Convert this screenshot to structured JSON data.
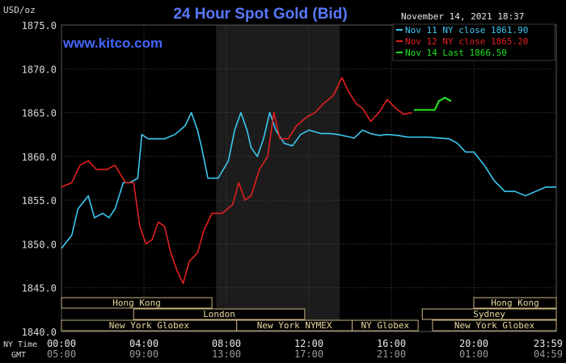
{
  "header": {
    "units": "USD/oz",
    "title": "24 Hour Spot Gold (Bid)",
    "website": "www.kitco.com",
    "timestamp": "November 14, 2021 18:37"
  },
  "legend": [
    {
      "label": "Nov 11 NY close 1861.90",
      "color": "#3cc8f0"
    },
    {
      "label": "Nov 12 NY close 1865.20",
      "color": "#e02020"
    },
    {
      "label": "Nov 14 Last 1866.50",
      "color": "#20e020"
    }
  ],
  "time_rows": {
    "ny_label": "NY Time",
    "gmt_label": "GMT",
    "ny": [
      "00:00",
      "04:00",
      "08:00",
      "12:00",
      "16:00",
      "20:00",
      "23:59"
    ],
    "gmt": [
      "05:00",
      "09:00",
      "13:00",
      "17:00",
      "21:00",
      "01:00",
      "04:59"
    ]
  },
  "sessions": {
    "row1": [
      "Hong Kong",
      "Hong Kong"
    ],
    "row2": [
      "London",
      "Sydney"
    ],
    "row3": [
      "New York Globex",
      "New York NYMEX",
      "NY Globex",
      "New York Globex"
    ]
  },
  "colors": {
    "background": "#000000",
    "grid": "#444444",
    "axis_text": "#d8d8d8",
    "title": "#5a78ff",
    "website": "#4466ff",
    "session_border": "#c8b480",
    "session_text": "#e8d8a0",
    "shade": "#1c1c1c"
  },
  "chart_data": {
    "type": "line",
    "title": "24 Hour Spot Gold (Bid)",
    "ylabel": "USD/oz",
    "ylim": [
      1840,
      1875
    ],
    "yticks": [
      "1840.0",
      "1845.0",
      "1850.0",
      "1855.0",
      "1860.0",
      "1865.0",
      "1870.0",
      "1875.0"
    ],
    "xlim": [
      0,
      24
    ],
    "shaded_hours": [
      7.5,
      13.5
    ],
    "series": [
      {
        "name": "Nov 11 NY close 1861.90",
        "color": "#3cc8f0",
        "points": [
          [
            0,
            1849.5
          ],
          [
            0.5,
            1851
          ],
          [
            0.8,
            1854
          ],
          [
            1.3,
            1855.5
          ],
          [
            1.6,
            1853
          ],
          [
            2,
            1853.5
          ],
          [
            2.3,
            1853
          ],
          [
            2.6,
            1854
          ],
          [
            3,
            1857
          ],
          [
            3.3,
            1857
          ],
          [
            3.7,
            1857.5
          ],
          [
            3.9,
            1862.5
          ],
          [
            4.2,
            1862
          ],
          [
            4.5,
            1862
          ],
          [
            5,
            1862
          ],
          [
            5.5,
            1862.5
          ],
          [
            6,
            1863.5
          ],
          [
            6.3,
            1865
          ],
          [
            6.6,
            1863
          ],
          [
            6.8,
            1861
          ],
          [
            7.1,
            1857.5
          ],
          [
            7.6,
            1857.5
          ],
          [
            8.1,
            1859.5
          ],
          [
            8.4,
            1863
          ],
          [
            8.7,
            1865
          ],
          [
            9,
            1863
          ],
          [
            9.2,
            1861
          ],
          [
            9.5,
            1860
          ],
          [
            9.8,
            1862
          ],
          [
            10.1,
            1865
          ],
          [
            10.4,
            1863
          ],
          [
            10.8,
            1861.5
          ],
          [
            11.2,
            1861.2
          ],
          [
            11.6,
            1862.5
          ],
          [
            12,
            1863
          ],
          [
            12.3,
            1862.8
          ],
          [
            12.6,
            1862.6
          ],
          [
            13,
            1862.6
          ],
          [
            13.4,
            1862.5
          ],
          [
            13.8,
            1862.3
          ],
          [
            14.2,
            1862.1
          ],
          [
            14.6,
            1863
          ],
          [
            15,
            1862.6
          ],
          [
            15.4,
            1862.4
          ],
          [
            15.8,
            1862.5
          ],
          [
            16.3,
            1862.4
          ],
          [
            16.8,
            1862.2
          ],
          [
            17.3,
            1862.2
          ],
          [
            17.8,
            1862.2
          ],
          [
            18.3,
            1862.1
          ],
          [
            18.8,
            1862
          ],
          [
            19.2,
            1861.5
          ],
          [
            19.6,
            1860.5
          ],
          [
            20,
            1860.5
          ],
          [
            20.5,
            1859
          ],
          [
            21,
            1857.2
          ],
          [
            21.5,
            1856
          ],
          [
            22,
            1856
          ],
          [
            22.5,
            1855.5
          ],
          [
            23,
            1856
          ],
          [
            23.5,
            1856.5
          ],
          [
            24,
            1856.5
          ]
        ]
      },
      {
        "name": "Nov 12 NY close 1865.20",
        "color": "#e02020",
        "points": [
          [
            0,
            1856.5
          ],
          [
            0.5,
            1857
          ],
          [
            0.9,
            1859
          ],
          [
            1.3,
            1859.5
          ],
          [
            1.7,
            1858.5
          ],
          [
            2.2,
            1858.5
          ],
          [
            2.6,
            1859
          ],
          [
            3.1,
            1857
          ],
          [
            3.5,
            1857
          ],
          [
            3.8,
            1852
          ],
          [
            4.1,
            1850
          ],
          [
            4.4,
            1850.5
          ],
          [
            4.7,
            1852.5
          ],
          [
            5,
            1852
          ],
          [
            5.3,
            1849
          ],
          [
            5.6,
            1847
          ],
          [
            5.9,
            1845.5
          ],
          [
            6.2,
            1848
          ],
          [
            6.6,
            1849
          ],
          [
            6.9,
            1851.5
          ],
          [
            7.3,
            1853.5
          ],
          [
            7.8,
            1853.5
          ],
          [
            8.3,
            1854.5
          ],
          [
            8.6,
            1857
          ],
          [
            8.9,
            1855
          ],
          [
            9.2,
            1855.5
          ],
          [
            9.6,
            1858.5
          ],
          [
            10,
            1860
          ],
          [
            10.3,
            1865
          ],
          [
            10.6,
            1862
          ],
          [
            11,
            1862
          ],
          [
            11.4,
            1863.5
          ],
          [
            11.9,
            1864.5
          ],
          [
            12.3,
            1865
          ],
          [
            12.7,
            1866
          ],
          [
            13.2,
            1867
          ],
          [
            13.6,
            1869
          ],
          [
            13.9,
            1867.5
          ],
          [
            14.3,
            1866
          ],
          [
            14.6,
            1865.5
          ],
          [
            15,
            1864
          ],
          [
            15.4,
            1865
          ],
          [
            15.8,
            1866.5
          ],
          [
            16.2,
            1865.5
          ],
          [
            16.6,
            1864.8
          ],
          [
            17,
            1865
          ]
        ]
      },
      {
        "name": "Nov 14 Last 1866.50",
        "color": "#20e020",
        "points": [
          [
            17.1,
            1865.3
          ],
          [
            17.6,
            1865.3
          ],
          [
            18.1,
            1865.3
          ],
          [
            18.3,
            1866.3
          ],
          [
            18.6,
            1866.7
          ],
          [
            18.9,
            1866.3
          ]
        ]
      }
    ]
  }
}
